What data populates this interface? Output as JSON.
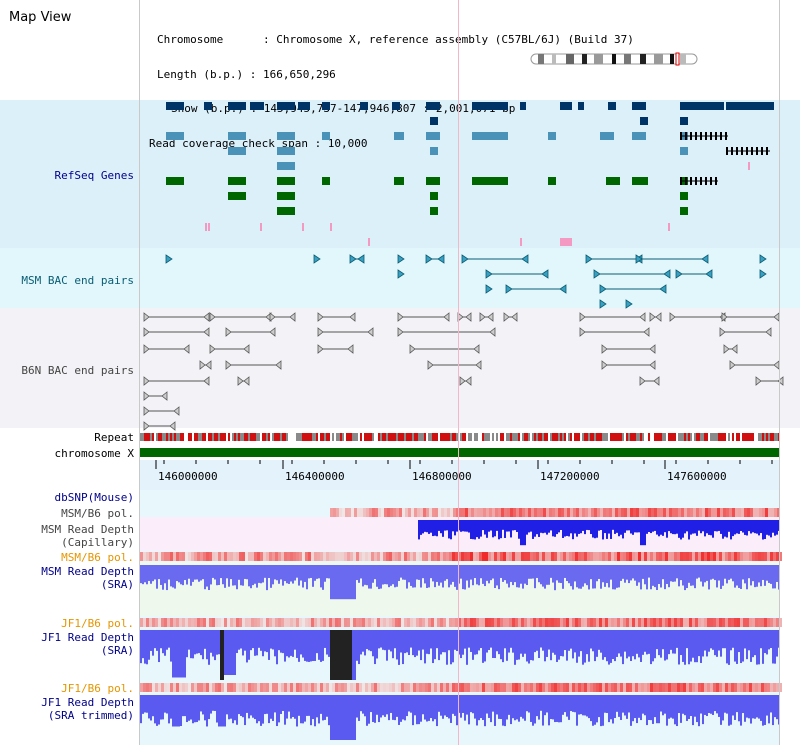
{
  "title": "Map View",
  "info": {
    "chromosome": "Chromosome      : Chromosome X, reference assembly (C57BL/6J) (Build 37)",
    "length": "Length (b.p.) : 166,650,296",
    "show": "Show (b.p.) : 145,945,737-147,946,807 : 2,001,071 bp",
    "coverage": "Read coverage check span : 10,000"
  },
  "tracks": {
    "refseq": "RefSeq Genes",
    "msm_bac": "MSM BAC end pairs",
    "b6n_bac": "B6N BAC end pairs",
    "repeat": "Repeat",
    "chromosome": "chromosome X",
    "dbsnp": "dbSNP(Mouse)",
    "msm_b6_pol_1": "MSM/B6 pol.",
    "msm_depth_cap_1": "MSM Read Depth",
    "msm_depth_cap_2": "(Capillary)",
    "msm_b6_pol_2": "MSM/B6 pol.",
    "msm_depth_sra_1": "MSM Read Depth",
    "msm_depth_sra_2": "(SRA)",
    "jf1_b6_pol_1": "JF1/B6 pol.",
    "jf1_depth_sra_1": "JF1 Read Depth",
    "jf1_depth_sra_2": "(SRA)",
    "jf1_b6_pol_2": "JF1/B6 pol.",
    "jf1_depth_trim_1": "JF1 Read Depth",
    "jf1_depth_trim_2": "(SRA trimmed)"
  },
  "ruler": {
    "ticks": [
      "146000000",
      "146400000",
      "146800000",
      "147200000",
      "147600000"
    ]
  },
  "colors": {
    "refseq_bg": "#dcf0fa",
    "msm_bac_bg": "#e1f7fc",
    "b6n_bac_bg": "#f1f2f7",
    "chromosome": "#006600",
    "gene_dark": "#003366",
    "gene_mid": "#4a92b8",
    "gene_green": "#006600",
    "depth_blue": "#1f1fe6",
    "depth_light": "#7777f0",
    "pol_red": "#e02020"
  },
  "icons": {
    "ideogram": "chromosome-ideogram"
  }
}
